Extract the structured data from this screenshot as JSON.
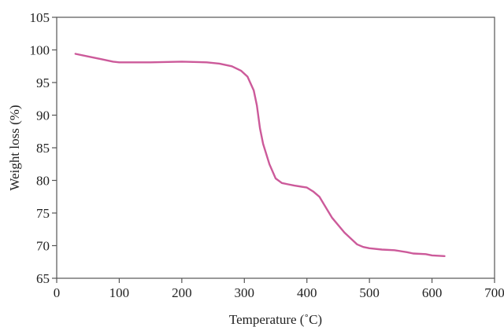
{
  "chart_data": {
    "type": "line",
    "xlabel": "Temperature (˚C)",
    "ylabel": "Weight loss (%)",
    "xlim": [
      0,
      700
    ],
    "ylim": [
      65,
      105
    ],
    "xticks": [
      0,
      100,
      200,
      300,
      400,
      500,
      600,
      700
    ],
    "yticks": [
      65,
      70,
      75,
      80,
      85,
      90,
      95,
      100,
      105
    ],
    "grid": false,
    "legend": "none",
    "series": [
      {
        "color": "#cc5a9a",
        "x": [
          30,
          50,
          70,
          90,
          100,
          150,
          200,
          240,
          260,
          280,
          295,
          305,
          315,
          320,
          325,
          330,
          340,
          350,
          360,
          370,
          380,
          400,
          410,
          420,
          430,
          440,
          460,
          480,
          490,
          500,
          520,
          540,
          560,
          570,
          590,
          600,
          620
        ],
        "y": [
          99.4,
          99.0,
          98.6,
          98.2,
          98.1,
          98.1,
          98.2,
          98.1,
          97.9,
          97.5,
          96.8,
          95.9,
          93.8,
          91.5,
          88.0,
          85.6,
          82.5,
          80.3,
          79.6,
          79.4,
          79.2,
          78.9,
          78.3,
          77.5,
          75.9,
          74.3,
          72.0,
          70.2,
          69.8,
          69.6,
          69.4,
          69.3,
          69.0,
          68.8,
          68.7,
          68.5,
          68.4
        ]
      }
    ]
  }
}
